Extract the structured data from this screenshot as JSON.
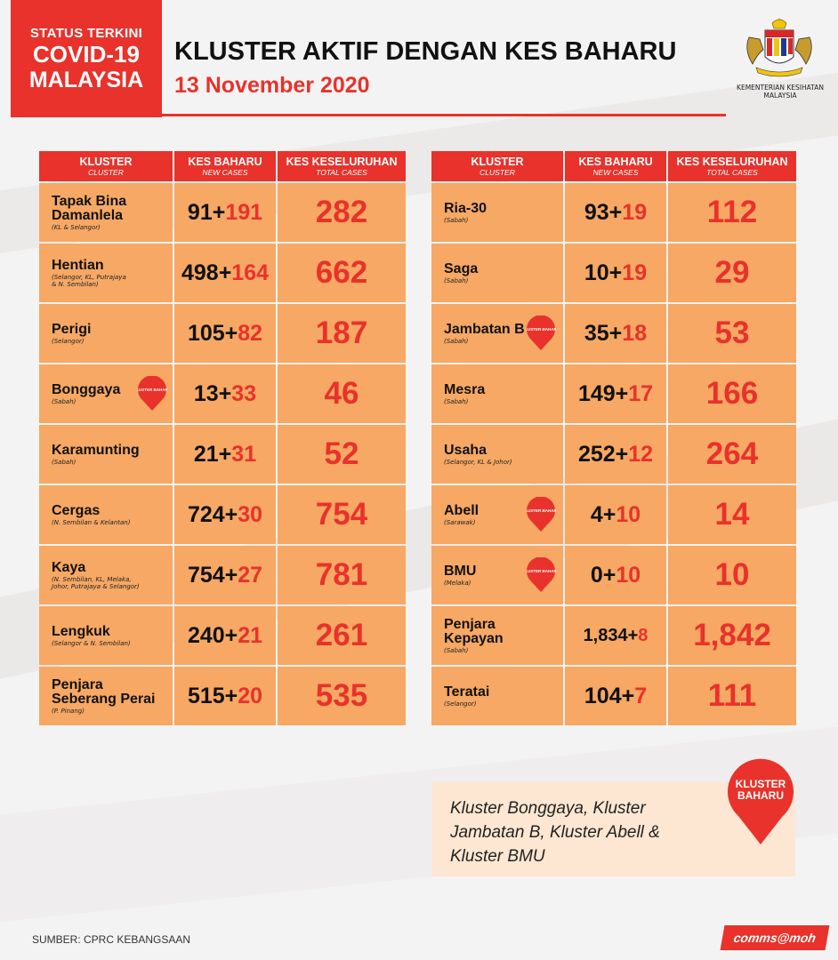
{
  "header": {
    "status_line1": "STATUS TERKINI",
    "status_line2": "COVID-19",
    "status_line3": "MALAYSIA",
    "title": "KLUSTER AKTIF DENGAN KES BAHARU",
    "date": "13 November 2020",
    "ministry_line1": "KEMENTERIAN KESIHATAN",
    "ministry_line2": "MALAYSIA"
  },
  "columns": {
    "cluster": "KLUSTER",
    "cluster_sub": "CLUSTER",
    "new": "KES BAHARU",
    "new_sub": "NEW CASES",
    "total": "KES KESELURUHAN",
    "total_sub": "TOTAL CASES"
  },
  "badge_label": "KLUSTER BAHARU",
  "left_table": [
    {
      "name": "Tapak Bina\nDamanlela",
      "state": "(KL & Selangor)",
      "prev": "91+",
      "add": "191",
      "total": "282",
      "is_new": false
    },
    {
      "name": "Hentian",
      "state": "(Selangor, KL, Putrajaya\n& N. Sembilan)",
      "prev": "498+",
      "add": "164",
      "total": "662",
      "is_new": false
    },
    {
      "name": "Perigi",
      "state": "(Selangor)",
      "prev": "105+",
      "add": "82",
      "total": "187",
      "is_new": false
    },
    {
      "name": "Bonggaya",
      "state": "(Sabah)",
      "prev": "13+",
      "add": "33",
      "total": "46",
      "is_new": true
    },
    {
      "name": "Karamunting",
      "state": "(Sabah)",
      "prev": "21+",
      "add": "31",
      "total": "52",
      "is_new": false
    },
    {
      "name": "Cergas",
      "state": "(N. Sembilan & Kelantan)",
      "prev": "724+",
      "add": "30",
      "total": "754",
      "is_new": false
    },
    {
      "name": "Kaya",
      "state": "(N. Sembilan, KL, Melaka,\nJohor, Putrajaya & Selangor)",
      "prev": "754+",
      "add": "27",
      "total": "781",
      "is_new": false
    },
    {
      "name": "Lengkuk",
      "state": "(Selangor & N. Sembilan)",
      "prev": "240+",
      "add": "21",
      "total": "261",
      "is_new": false
    },
    {
      "name": "Penjara\nSeberang Perai",
      "state": "(P. Pinang)",
      "prev": "515+",
      "add": "20",
      "total": "535",
      "is_new": false
    }
  ],
  "right_table": [
    {
      "name": "Ria-30",
      "state": "(Sabah)",
      "prev": "93+",
      "add": "19",
      "total": "112",
      "is_new": false
    },
    {
      "name": "Saga",
      "state": "(Sabah)",
      "prev": "10+",
      "add": "19",
      "total": "29",
      "is_new": false
    },
    {
      "name": "Jambatan B",
      "state": "(Sabah)",
      "prev": "35+",
      "add": "18",
      "total": "53",
      "is_new": true
    },
    {
      "name": "Mesra",
      "state": "(Sabah)",
      "prev": "149+",
      "add": "17",
      "total": "166",
      "is_new": false
    },
    {
      "name": "Usaha",
      "state": "(Selangor, KL & Johor)",
      "prev": "252+",
      "add": "12",
      "total": "264",
      "is_new": false
    },
    {
      "name": "Abell",
      "state": "(Sarawak)",
      "prev": "4+",
      "add": "10",
      "total": "14",
      "is_new": true
    },
    {
      "name": "BMU",
      "state": "(Melaka)",
      "prev": "0+",
      "add": "10",
      "total": "10",
      "is_new": true
    },
    {
      "name": "Penjara\nKepayan",
      "state": "(Sabah)",
      "prev": "1,834+",
      "add": "8",
      "total": "1,842",
      "is_new": false
    },
    {
      "name": "Teratai",
      "state": "(Selangor)",
      "prev": "104+",
      "add": "7",
      "total": "111",
      "is_new": false
    }
  ],
  "note": "Kluster Bonggaya, Kluster Jambatan B, Kluster Abell & Kluster BMU",
  "note_badge_line1": "KLUSTER",
  "note_badge_line2": "BAHARU",
  "footer": {
    "source": "SUMBER: CPRC KEBANGSAAN",
    "brand": "comms@moh"
  },
  "colors": {
    "accent_red": "#e8322b",
    "cell_orange": "#f6a864",
    "note_bg": "#fde7d2"
  }
}
